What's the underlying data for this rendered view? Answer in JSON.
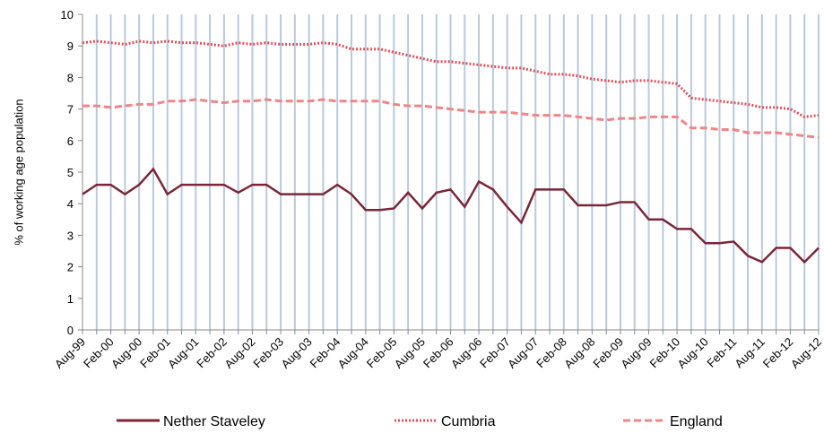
{
  "chart_data": {
    "type": "line",
    "y_label": "% of working age population",
    "categories": [
      "Aug-99",
      null,
      "Feb-00",
      null,
      "Aug-00",
      null,
      "Feb-01",
      null,
      "Aug-01",
      null,
      "Feb-02",
      null,
      "Aug-02",
      null,
      "Feb-03",
      null,
      "Aug-03",
      null,
      "Feb-04",
      null,
      "Aug-04",
      null,
      "Feb-05",
      null,
      "Aug-05",
      null,
      "Feb-06",
      null,
      "Aug-06",
      null,
      "Feb-07",
      null,
      "Aug-07",
      null,
      "Feb-08",
      null,
      "Aug-08",
      null,
      "Feb-09",
      null,
      "Aug-09",
      null,
      "Feb-10",
      null,
      "Aug-10",
      null,
      "Feb-11",
      null,
      "Aug-11",
      null,
      "Feb-12",
      null,
      "Aug-12"
    ],
    "series": [
      {
        "name": "Nether Staveley",
        "color": "#7b2637",
        "dash": "solid",
        "values": [
          4.3,
          4.6,
          4.6,
          4.3,
          4.6,
          5.1,
          4.3,
          4.6,
          4.6,
          4.6,
          4.6,
          4.35,
          4.6,
          4.6,
          4.3,
          4.3,
          4.3,
          4.3,
          4.6,
          4.3,
          3.8,
          3.8,
          3.85,
          4.35,
          3.85,
          4.35,
          4.45,
          3.9,
          4.7,
          4.45,
          3.9,
          3.4,
          4.45,
          4.45,
          4.45,
          3.95,
          3.95,
          3.95,
          4.05,
          4.05,
          3.5,
          3.5,
          3.2,
          3.2,
          2.75,
          2.75,
          2.8,
          2.35,
          2.15,
          2.6,
          2.6,
          2.15,
          2.6
        ]
      },
      {
        "name": "Cumbria",
        "color": "#e0505a",
        "dash": "dotted",
        "values": [
          9.1,
          9.15,
          9.1,
          9.05,
          9.15,
          9.1,
          9.15,
          9.1,
          9.1,
          9.05,
          9.0,
          9.1,
          9.05,
          9.1,
          9.05,
          9.05,
          9.05,
          9.1,
          9.05,
          8.9,
          8.9,
          8.9,
          8.8,
          8.7,
          8.6,
          8.5,
          8.5,
          8.45,
          8.4,
          8.35,
          8.3,
          8.3,
          8.2,
          8.1,
          8.1,
          8.05,
          7.95,
          7.9,
          7.85,
          7.9,
          7.9,
          7.85,
          7.8,
          7.35,
          7.3,
          7.25,
          7.2,
          7.15,
          7.05,
          7.05,
          7.0,
          6.75,
          6.8
        ]
      },
      {
        "name": "England",
        "color": "#f08585",
        "dash": "dashed",
        "values": [
          7.1,
          7.1,
          7.05,
          7.1,
          7.15,
          7.15,
          7.25,
          7.25,
          7.3,
          7.25,
          7.2,
          7.25,
          7.25,
          7.3,
          7.25,
          7.25,
          7.25,
          7.3,
          7.25,
          7.25,
          7.25,
          7.25,
          7.15,
          7.1,
          7.1,
          7.05,
          7.0,
          6.95,
          6.9,
          6.9,
          6.9,
          6.85,
          6.8,
          6.8,
          6.8,
          6.75,
          6.7,
          6.65,
          6.7,
          6.7,
          6.75,
          6.75,
          6.75,
          6.4,
          6.4,
          6.35,
          6.35,
          6.25,
          6.25,
          6.25,
          6.2,
          6.15,
          6.1
        ]
      }
    ],
    "ylim": [
      0,
      10
    ],
    "yticks": [
      0,
      1,
      2,
      3,
      4,
      5,
      6,
      7,
      8,
      9,
      10
    ],
    "vertical_grid": true,
    "grid_color": "#b9c9dc",
    "legend": "bottom"
  }
}
